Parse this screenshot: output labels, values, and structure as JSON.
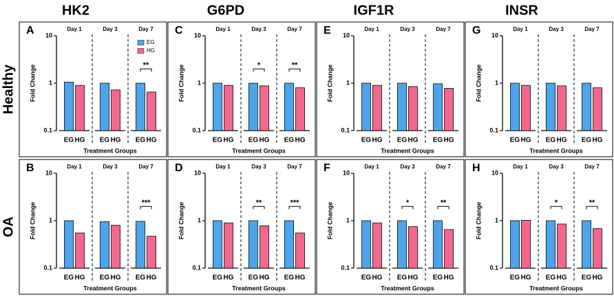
{
  "column_headers": [
    "HK2",
    "G6PD",
    "IGF1R",
    "INSR"
  ],
  "row_labels": [
    "Healthy",
    "OA"
  ],
  "chart_data": [
    {
      "type": "bar",
      "panel": "A",
      "ylabel": "Fold Change",
      "xlabel": "Treatment Groups",
      "groups": [
        "Day 1",
        "Day 3",
        "Day 7"
      ],
      "log": true,
      "ylim": [
        0.1,
        10
      ],
      "yticks": [
        0.1,
        1,
        10
      ],
      "legend": true,
      "series": [
        {
          "name": "EG",
          "color": "#4ea5ec",
          "values": [
            1.05,
            1.0,
            1.0
          ]
        },
        {
          "name": "HG",
          "color": "#f2688f",
          "values": [
            0.9,
            0.72,
            0.65
          ]
        }
      ],
      "annotations": [
        {
          "group": 2,
          "text": "**"
        }
      ]
    },
    {
      "type": "bar",
      "panel": "C",
      "ylabel": "Fold Change",
      "xlabel": "Treatment Groups",
      "groups": [
        "Day 1",
        "Day 3",
        "Day 7"
      ],
      "log": true,
      "ylim": [
        0.1,
        10
      ],
      "yticks": [
        0.1,
        1,
        10
      ],
      "series": [
        {
          "name": "EG",
          "color": "#4ea5ec",
          "values": [
            1.0,
            1.0,
            1.0
          ]
        },
        {
          "name": "HG",
          "color": "#f2688f",
          "values": [
            0.9,
            0.88,
            0.8
          ]
        }
      ],
      "annotations": [
        {
          "group": 1,
          "text": "*"
        },
        {
          "group": 2,
          "text": "**"
        }
      ]
    },
    {
      "type": "bar",
      "panel": "E",
      "ylabel": "Fold Change",
      "xlabel": "Treatment Groups",
      "groups": [
        "Day 1",
        "Day 3",
        "Day 7"
      ],
      "log": true,
      "ylim": [
        0.1,
        10
      ],
      "yticks": [
        0.1,
        1,
        10
      ],
      "series": [
        {
          "name": "EG",
          "color": "#4ea5ec",
          "values": [
            1.0,
            1.0,
            0.97
          ]
        },
        {
          "name": "HG",
          "color": "#f2688f",
          "values": [
            0.9,
            0.85,
            0.78
          ]
        }
      ],
      "annotations": []
    },
    {
      "type": "bar",
      "panel": "G",
      "ylabel": "Fold Change",
      "xlabel": "Treatment Groups",
      "groups": [
        "Day 1",
        "Day 3",
        "Day 7"
      ],
      "log": true,
      "ylim": [
        0.1,
        10
      ],
      "yticks": [
        0.1,
        1,
        10
      ],
      "series": [
        {
          "name": "EG",
          "color": "#4ea5ec",
          "values": [
            1.0,
            1.0,
            1.0
          ]
        },
        {
          "name": "HG",
          "color": "#f2688f",
          "values": [
            0.9,
            0.88,
            0.8
          ]
        }
      ],
      "annotations": []
    },
    {
      "type": "bar",
      "panel": "B",
      "ylabel": "Fold Change",
      "xlabel": "Treatment Groups",
      "groups": [
        "Day 1",
        "Day 3",
        "Day 7"
      ],
      "log": true,
      "ylim": [
        0.1,
        10
      ],
      "yticks": [
        0.1,
        1,
        10
      ],
      "series": [
        {
          "name": "EG",
          "color": "#4ea5ec",
          "values": [
            1.0,
            0.95,
            0.97
          ]
        },
        {
          "name": "HG",
          "color": "#f2688f",
          "values": [
            0.55,
            0.8,
            0.47
          ]
        }
      ],
      "annotations": [
        {
          "group": 2,
          "text": "***"
        }
      ]
    },
    {
      "type": "bar",
      "panel": "D",
      "ylabel": "Fold Change",
      "xlabel": "Treatment Groups",
      "groups": [
        "Day 1",
        "Day 3",
        "Day 7"
      ],
      "log": true,
      "ylim": [
        0.1,
        10
      ],
      "yticks": [
        0.1,
        1,
        10
      ],
      "series": [
        {
          "name": "EG",
          "color": "#4ea5ec",
          "values": [
            1.0,
            1.0,
            1.0
          ]
        },
        {
          "name": "HG",
          "color": "#f2688f",
          "values": [
            0.9,
            0.78,
            0.55
          ]
        }
      ],
      "annotations": [
        {
          "group": 1,
          "text": "**"
        },
        {
          "group": 2,
          "text": "***"
        }
      ]
    },
    {
      "type": "bar",
      "panel": "F",
      "ylabel": "Fold Change",
      "xlabel": "Treatment Groups",
      "groups": [
        "Day 1",
        "Day 3",
        "Day 7"
      ],
      "log": true,
      "ylim": [
        0.1,
        10
      ],
      "yticks": [
        0.1,
        1,
        10
      ],
      "series": [
        {
          "name": "EG",
          "color": "#4ea5ec",
          "values": [
            1.0,
            1.0,
            1.0
          ]
        },
        {
          "name": "HG",
          "color": "#f2688f",
          "values": [
            0.9,
            0.75,
            0.65
          ]
        }
      ],
      "annotations": [
        {
          "group": 1,
          "text": "*"
        },
        {
          "group": 2,
          "text": "**"
        }
      ]
    },
    {
      "type": "bar",
      "panel": "H",
      "ylabel": "Fold Change",
      "xlabel": "Treatment Groups",
      "groups": [
        "Day 1",
        "Day 3",
        "Day 7"
      ],
      "log": true,
      "ylim": [
        0.1,
        10
      ],
      "yticks": [
        0.1,
        1,
        10
      ],
      "series": [
        {
          "name": "EG",
          "color": "#4ea5ec",
          "values": [
            1.0,
            1.0,
            1.0
          ]
        },
        {
          "name": "HG",
          "color": "#f2688f",
          "values": [
            1.02,
            0.85,
            0.68
          ]
        }
      ],
      "annotations": [
        {
          "group": 1,
          "text": "*"
        },
        {
          "group": 2,
          "text": "**"
        }
      ]
    }
  ]
}
